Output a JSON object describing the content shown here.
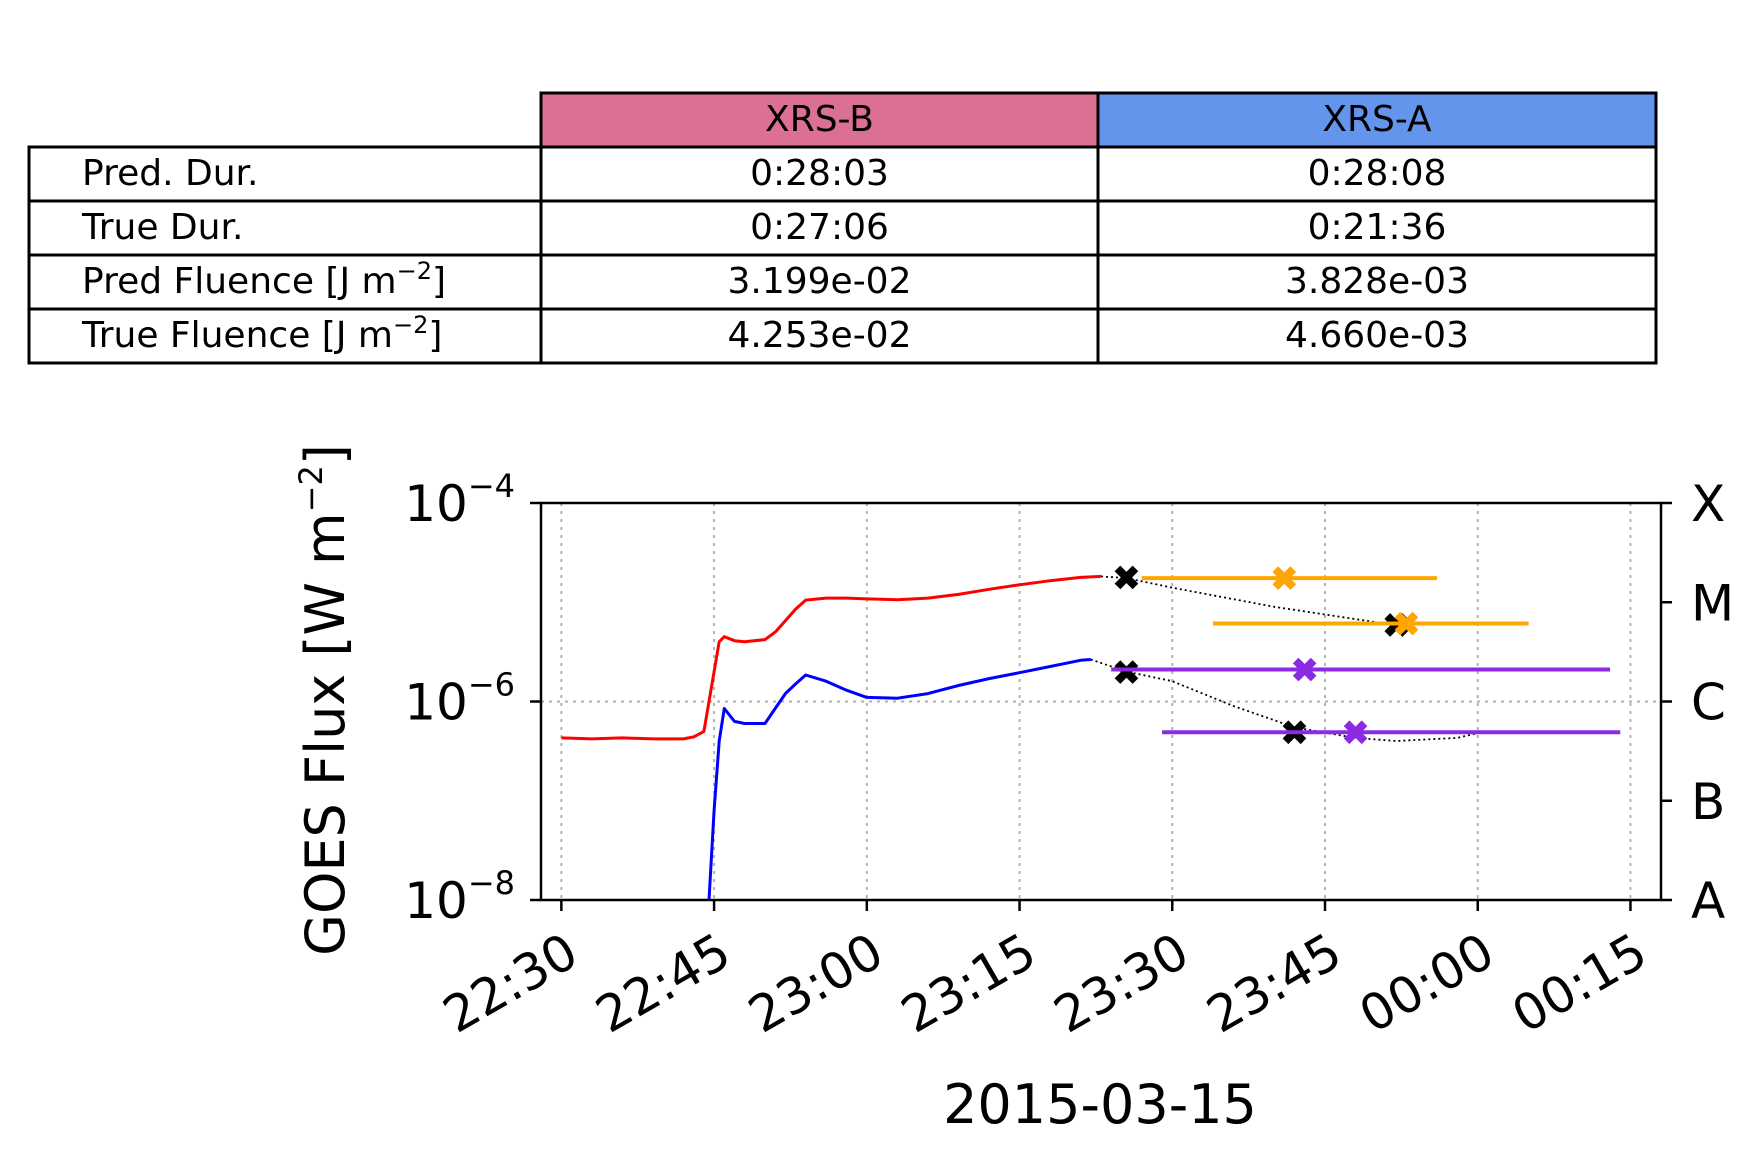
{
  "table": {
    "col_headers": [
      "XRS-B",
      "XRS-A"
    ],
    "header_colors": [
      "#db7093",
      "#6495ed"
    ],
    "rows": [
      {
        "label": "Pred. Dur.",
        "values": [
          "0:28:03",
          "0:28:08"
        ]
      },
      {
        "label": "True Dur.",
        "values": [
          "0:27:06",
          "0:21:36"
        ]
      },
      {
        "label_main": "Pred Fluence [J m",
        "label_sup": "−2",
        "label_tail": "]",
        "values": [
          "3.199e-02",
          "3.828e-03"
        ]
      },
      {
        "label_main": "True Fluence [J m",
        "label_sup": "−2",
        "label_tail": "]",
        "values": [
          "4.253e-02",
          "4.660e-03"
        ]
      }
    ]
  },
  "chart_data": {
    "type": "line",
    "xlabel": "2015-03-15",
    "ylabel_main": "GOES Flux [W m",
    "ylabel_sup": "−2",
    "ylabel_tail": "]",
    "yscale": "log",
    "ylim": [
      1e-08,
      0.0001
    ],
    "xlim": [
      "22:28",
      "00:18"
    ],
    "grid": true,
    "x_tick_labels": [
      "22:30",
      "22:45",
      "23:00",
      "23:15",
      "23:30",
      "23:45",
      "00:00",
      "00:15"
    ],
    "y_tick_labels": [
      {
        "base": "10",
        "exp": "−4"
      },
      {
        "base": "10",
        "exp": "−6"
      },
      {
        "base": "10",
        "exp": "−8"
      }
    ],
    "flare_class_labels": [
      "X",
      "M",
      "C",
      "B",
      "A"
    ],
    "colors": {
      "xrs_b": "#ff0000",
      "xrs_a": "#0000ff",
      "pred_b": "#ffa500",
      "pred_a": "#8a2be2",
      "true": "#000000"
    },
    "series": [
      {
        "key": "xrs_b",
        "points": [
          [
            "22:30",
            4.3e-07
          ],
          [
            "22:33",
            4.2e-07
          ],
          [
            "22:36",
            4.3e-07
          ],
          [
            "22:39",
            4.2e-07
          ],
          [
            "22:42",
            4.2e-07
          ],
          [
            "22:43",
            4.4e-07
          ],
          [
            "22:44",
            5e-07
          ],
          [
            "22:45",
            2e-06
          ],
          [
            "22:45.5",
            4e-06
          ],
          [
            "22:46",
            4.5e-06
          ],
          [
            "22:47",
            4.1e-06
          ],
          [
            "22:48",
            4e-06
          ],
          [
            "22:50",
            4.2e-06
          ],
          [
            "22:51",
            5e-06
          ],
          [
            "22:52",
            6.5e-06
          ],
          [
            "22:53",
            8.5e-06
          ],
          [
            "22:54",
            1.05e-05
          ],
          [
            "22:56",
            1.1e-05
          ],
          [
            "22:58",
            1.1e-05
          ],
          [
            "23:00",
            1.08e-05
          ],
          [
            "23:03",
            1.06e-05
          ],
          [
            "23:06",
            1.1e-05
          ],
          [
            "23:09",
            1.2e-05
          ],
          [
            "23:12",
            1.35e-05
          ],
          [
            "23:15",
            1.5e-05
          ],
          [
            "23:18",
            1.65e-05
          ],
          [
            "23:21",
            1.78e-05
          ],
          [
            "23:23",
            1.82e-05
          ]
        ]
      },
      {
        "key": "xrs_a",
        "points": [
          [
            "22:44.5",
            1e-08
          ],
          [
            "22:45",
            8e-08
          ],
          [
            "22:45.5",
            4e-07
          ],
          [
            "22:46",
            8.5e-07
          ],
          [
            "22:47",
            6.3e-07
          ],
          [
            "22:48",
            6e-07
          ],
          [
            "22:50",
            6e-07
          ],
          [
            "22:51",
            8.5e-07
          ],
          [
            "22:52",
            1.2e-06
          ],
          [
            "22:53",
            1.5e-06
          ],
          [
            "22:54",
            1.85e-06
          ],
          [
            "22:56",
            1.6e-06
          ],
          [
            "22:58",
            1.3e-06
          ],
          [
            "23:00",
            1.1e-06
          ],
          [
            "23:03",
            1.08e-06
          ],
          [
            "23:06",
            1.2e-06
          ],
          [
            "23:09",
            1.45e-06
          ],
          [
            "23:12",
            1.7e-06
          ],
          [
            "23:15",
            1.95e-06
          ],
          [
            "23:18",
            2.25e-06
          ],
          [
            "23:21",
            2.6e-06
          ],
          [
            "23:22",
            2.65e-06
          ]
        ]
      },
      {
        "key": "true_b",
        "style": "dotted",
        "points": [
          [
            "23:23",
            1.82e-05
          ],
          [
            "23:25.5",
            1.75e-05
          ],
          [
            "23:30",
            1.4e-05
          ],
          [
            "23:40",
            9e-06
          ],
          [
            "23:50",
            6.3e-06
          ],
          [
            "23:53",
            5.9e-06
          ]
        ]
      },
      {
        "key": "true_a",
        "style": "dotted",
        "points": [
          [
            "23:22",
            2.65e-06
          ],
          [
            "23:25.5",
            2e-06
          ],
          [
            "23:30",
            1.6e-06
          ],
          [
            "23:36",
            9e-07
          ],
          [
            "23:42",
            5.5e-07
          ],
          [
            "23:48",
            4.3e-07
          ],
          [
            "23:52",
            4e-07
          ],
          [
            "23:58",
            4.3e-07
          ],
          [
            "00:00",
            4.8e-07
          ]
        ]
      }
    ],
    "markers": [
      {
        "key": "true",
        "x": "23:25.5",
        "y": 1.78e-05
      },
      {
        "key": "true",
        "x": "23:25.5",
        "y": 1.98e-06
      },
      {
        "key": "true",
        "x": "23:42",
        "y": 4.9e-07
      },
      {
        "key": "true",
        "x": "23:52",
        "y": 5.9e-06
      }
    ],
    "predictions": [
      {
        "key": "pred_b",
        "x": "23:41",
        "x_range": [
          "23:27",
          "23:56"
        ],
        "y": 1.75e-05
      },
      {
        "key": "pred_b",
        "x": "23:53",
        "x_range": [
          "23:34",
          "00:05"
        ],
        "y": 6.1e-06
      },
      {
        "key": "pred_a",
        "x": "23:43",
        "x_range": [
          "23:24",
          "00:13"
        ],
        "y": 2.1e-06
      },
      {
        "key": "pred_a",
        "x": "23:48",
        "x_range": [
          "23:29",
          "00:14"
        ],
        "y": 4.9e-07
      }
    ]
  }
}
